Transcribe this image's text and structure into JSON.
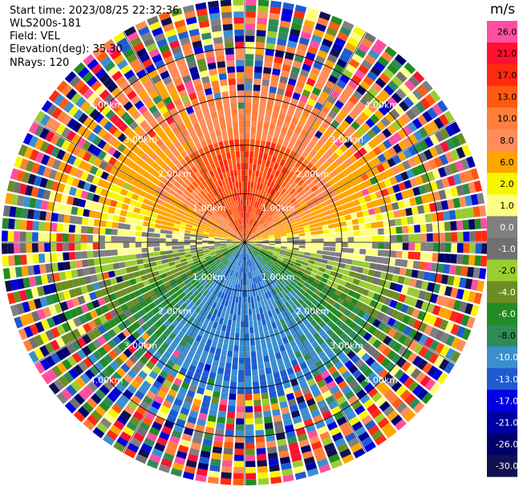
{
  "header": {
    "start_time": "Start time: 2023/08/25 22:32:36",
    "instrument": "WLS200s-181",
    "field": "Field: VEL",
    "elevation": "Elevation(deg): 35.30",
    "nrays": "NRays: 120"
  },
  "chart_data": {
    "type": "heatmap",
    "projection": "polar-ppi",
    "field": "VEL",
    "units": "m/s",
    "n_rays": 120,
    "elevation_deg": 35.3,
    "range_rings_km": [
      1.0,
      2.0,
      3.0,
      4.0
    ],
    "ring_labels": [
      "1.00km",
      "2.00km",
      "3.00km",
      "4.00km"
    ],
    "max_range_km": 5.0,
    "colorbar": {
      "unit_label": "m/s",
      "ticks": [
        "26.0",
        "21.0",
        "17.0",
        "13.0",
        "10.0",
        "8.0",
        "6.0",
        "2.0",
        "1.0",
        "0.0",
        "-1.0",
        "-2.0",
        "-4.0",
        "-6.0",
        "-8.0",
        "-10.0",
        "-13.0",
        "-17.0",
        "-21.0",
        "-26.0",
        "-30.0"
      ],
      "colors": [
        "#ff4fa0",
        "#ff1030",
        "#ff2a10",
        "#ff5a10",
        "#ff7f3a",
        "#ff8c5a",
        "#ffa500",
        "#f7f700",
        "#ffff80",
        "#808080",
        "#707070",
        "#9acd32",
        "#6b8e23",
        "#228b22",
        "#2e8b57",
        "#3a8fd0",
        "#1e5bd0",
        "#0000e0",
        "#0000a0",
        "#00006a",
        "#101050"
      ]
    },
    "description_summary": {
      "north_hemisphere": "positive velocities (orange/red, approx 6 to 17 m/s)",
      "south_hemisphere": "negative velocities (green/blue, approx -2 to -10 m/s)",
      "outer_ranges": "noisy, random colors beyond ~4 km"
    }
  }
}
